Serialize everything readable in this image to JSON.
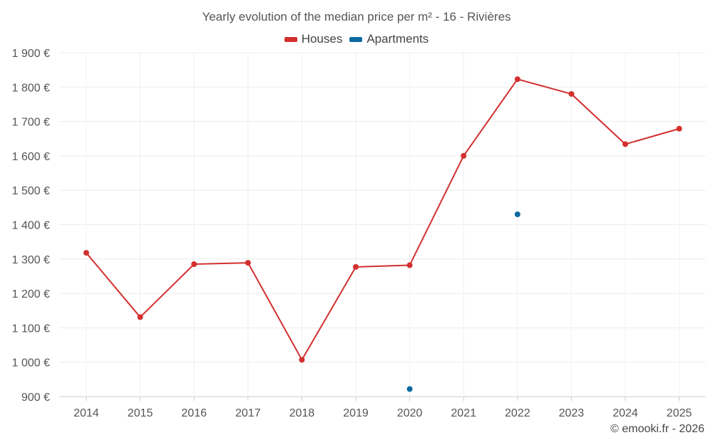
{
  "chart_data": {
    "type": "line",
    "title": "Yearly evolution of the median price per m² - 16 - Rivières",
    "xlabel": "",
    "ylabel": "",
    "categories": [
      "2014",
      "2015",
      "2016",
      "2017",
      "2018",
      "2019",
      "2020",
      "2021",
      "2022",
      "2023",
      "2024",
      "2025"
    ],
    "ylim": [
      900,
      1900
    ],
    "yticks": [
      900,
      1000,
      1100,
      1200,
      1300,
      1400,
      1500,
      1600,
      1700,
      1800,
      1900
    ],
    "ytick_labels": [
      "900 €",
      "1 000 €",
      "1 100 €",
      "1 200 €",
      "1 300 €",
      "1 400 €",
      "1 500 €",
      "1 600 €",
      "1 700 €",
      "1 800 €",
      "1 900 €"
    ],
    "grid": true,
    "legend_position": "top-center",
    "series": [
      {
        "name": "Houses",
        "color": "#d32f2f",
        "values": [
          1318,
          1131,
          1285,
          1289,
          1007,
          1277,
          1282,
          1600,
          1823,
          1780,
          1634,
          1679
        ]
      },
      {
        "name": "Apartments",
        "color": "#0b6aa2",
        "values": [
          null,
          null,
          null,
          null,
          null,
          null,
          922,
          null,
          1430,
          null,
          null,
          null
        ]
      }
    ]
  },
  "credit": "© emooki.fr - 2026"
}
